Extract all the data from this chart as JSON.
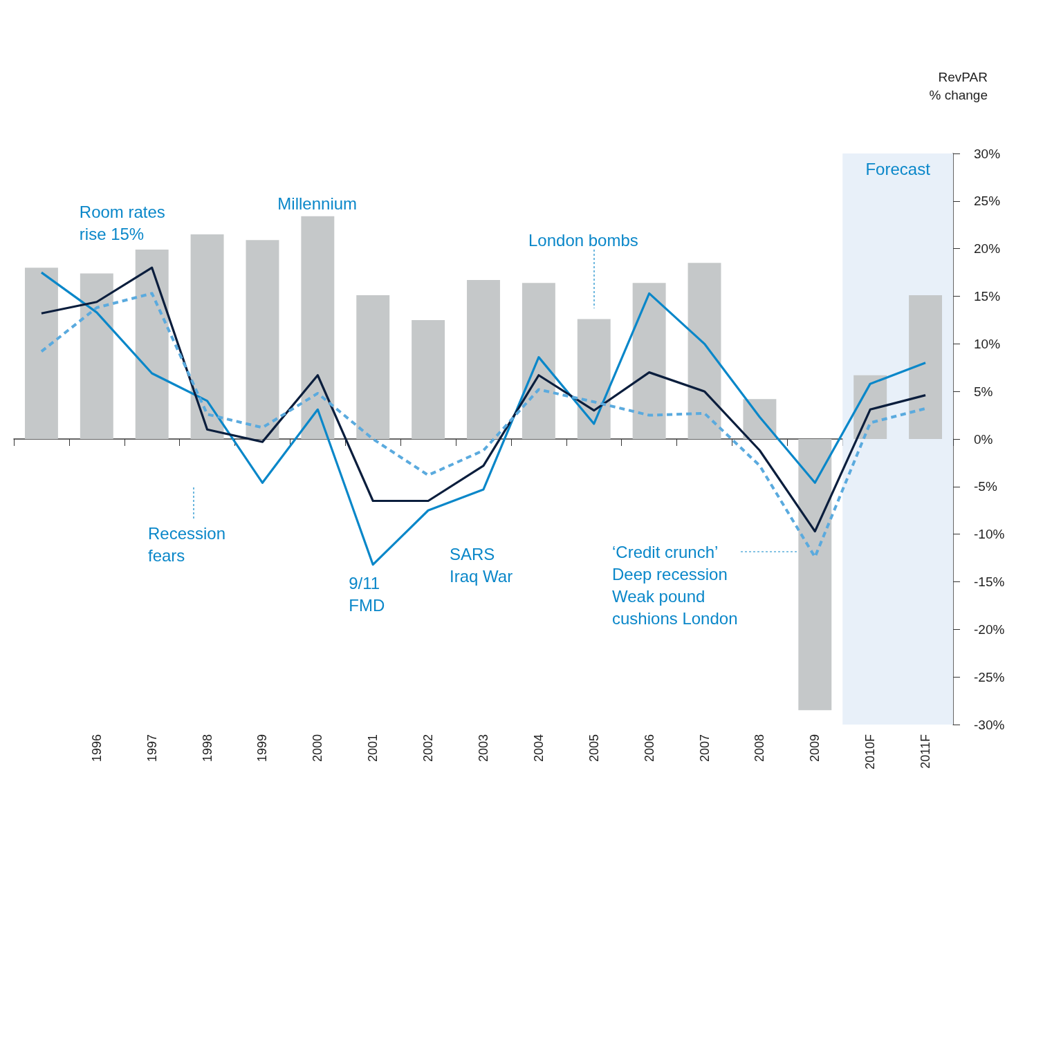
{
  "chart_data": {
    "type": "bar",
    "ylabel": "RevPAR\n% change",
    "categories": [
      null,
      "1996",
      "1997",
      "1998",
      "1999",
      "2000",
      "2001",
      "2002",
      "2003",
      "2004",
      "2005",
      "2006",
      "2007",
      "2008",
      "2009",
      "2010F",
      "2011F"
    ],
    "series": [
      {
        "color": "#c5c8c9",
        "values": [
          18.0,
          17.4,
          19.9,
          21.5,
          20.9,
          23.4,
          15.1,
          12.5,
          16.7,
          16.4,
          12.6,
          16.4,
          18.5,
          4.2,
          -28.5,
          6.7,
          15.1
        ]
      },
      {
        "type": "line",
        "color": "#0a87c9",
        "line_style": "solid",
        "values": [
          17.5,
          13.3,
          6.9,
          4.0,
          -4.6,
          3.1,
          -13.2,
          -7.5,
          -5.3,
          8.6,
          1.6,
          15.3,
          10.0,
          2.3,
          -4.6,
          5.8,
          8.0
        ]
      },
      {
        "type": "line",
        "color": "#0b1e3d",
        "line_style": "solid",
        "values": [
          13.2,
          14.4,
          18.0,
          1.0,
          -0.3,
          6.7,
          -6.5,
          -6.5,
          -2.8,
          6.7,
          3.0,
          7.0,
          5.0,
          -1.2,
          -9.7,
          3.1,
          4.6
        ]
      },
      {
        "type": "line",
        "color": "#5aaade",
        "line_style": "dashed",
        "values": [
          9.2,
          13.8,
          15.3,
          2.6,
          1.2,
          4.8,
          0,
          -3.8,
          -1.2,
          5.2,
          3.9,
          2.5,
          2.7,
          -2.8,
          -12.4,
          1.7,
          3.2
        ]
      }
    ],
    "marker": "none",
    "ylim": [
      -30,
      30
    ],
    "yticks": [
      {
        "value": -30,
        "label": "-30%"
      },
      {
        "value": -25,
        "label": "-25%"
      },
      {
        "value": -20,
        "label": "-20%"
      },
      {
        "value": -15,
        "label": "-15%"
      },
      {
        "value": -10,
        "label": "-10%"
      },
      {
        "value": -5,
        "label": "-5%"
      },
      {
        "value": 0,
        "label": "0%"
      },
      {
        "value": 5,
        "label": "5%"
      },
      {
        "value": 10,
        "label": "10%"
      },
      {
        "value": 15,
        "label": "15%"
      },
      {
        "value": 20,
        "label": "20%"
      },
      {
        "value": 25,
        "label": "25%"
      },
      {
        "value": 30,
        "label": "30%"
      }
    ],
    "bands": [
      {
        "axis": "x",
        "from": "2010F",
        "to": "2011F",
        "label": "Forecast",
        "color": "#e8f0f9"
      }
    ],
    "annotations": [
      {
        "text": "Room rates\nrise 15%",
        "x": "1996",
        "y": 17.4
      },
      {
        "text": "Millennium",
        "x": "2000",
        "y": 23.4
      },
      "London bombs",
      "Recession\nfears",
      {
        "text": "9/11\nFMD",
        "x": "2001",
        "y": -13.2
      },
      "SARS\nIraq War",
      "‘Credit crunch’\nDeep recession\nWeak pound\ncushions London"
    ]
  }
}
